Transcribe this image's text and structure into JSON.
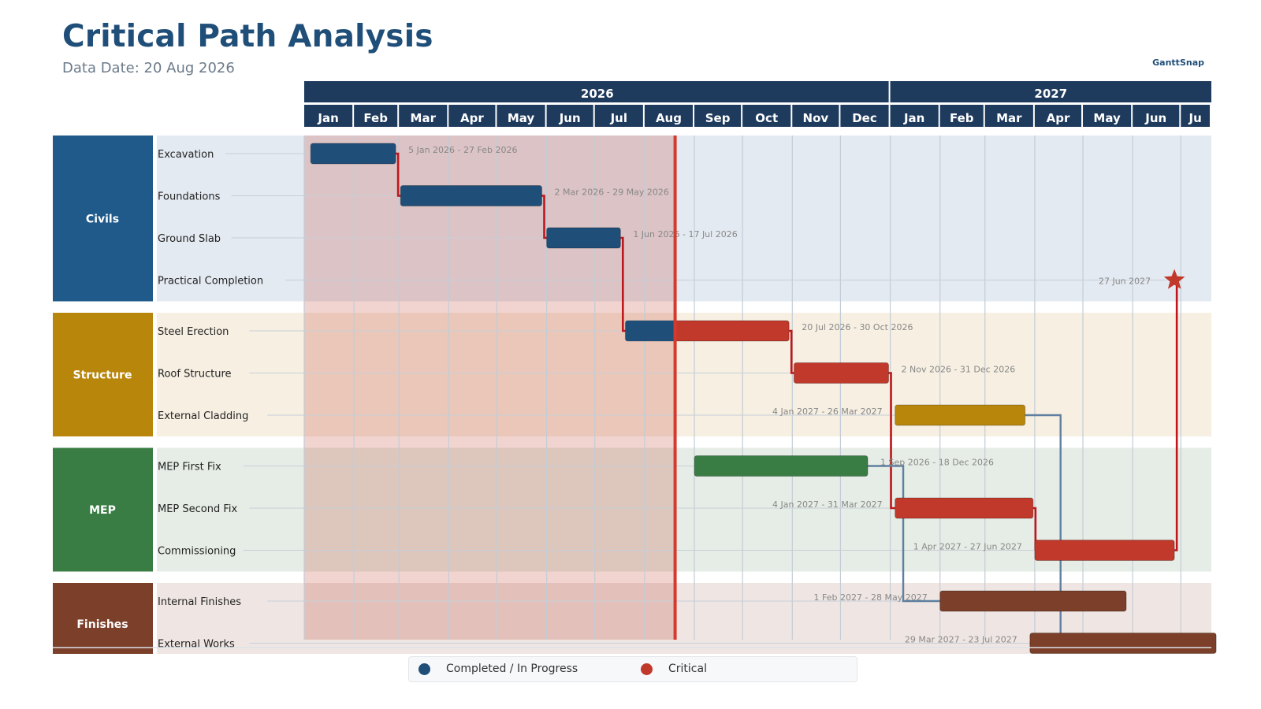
{
  "title": "Critical Path Analysis",
  "subtitle": "Data Date: 20 Aug 2026",
  "brand": "GanttSnap",
  "chart_data": {
    "type": "gantt",
    "data_date": "2026-08-20",
    "axis_start": "2026-01-01",
    "axis_end": "2027-07-20",
    "years": [
      {
        "label": "2026",
        "start": "2026-01-01",
        "end": "2027-01-01"
      },
      {
        "label": "2027",
        "start": "2027-01-01",
        "end": "2027-07-20"
      }
    ],
    "months": [
      {
        "label": "Jan",
        "start": "2026-01-01"
      },
      {
        "label": "Feb",
        "start": "2026-02-01"
      },
      {
        "label": "Mar",
        "start": "2026-03-01"
      },
      {
        "label": "Apr",
        "start": "2026-04-01"
      },
      {
        "label": "May",
        "start": "2026-05-01"
      },
      {
        "label": "Jun",
        "start": "2026-06-01"
      },
      {
        "label": "Jul",
        "start": "2026-07-01"
      },
      {
        "label": "Aug",
        "start": "2026-08-01"
      },
      {
        "label": "Sep",
        "start": "2026-09-01"
      },
      {
        "label": "Oct",
        "start": "2026-10-01"
      },
      {
        "label": "Nov",
        "start": "2026-11-01"
      },
      {
        "label": "Dec",
        "start": "2026-12-01"
      },
      {
        "label": "Jan",
        "start": "2027-01-01"
      },
      {
        "label": "Feb",
        "start": "2027-02-01"
      },
      {
        "label": "Mar",
        "start": "2027-03-01"
      },
      {
        "label": "Apr",
        "start": "2027-04-01"
      },
      {
        "label": "May",
        "start": "2027-05-01"
      },
      {
        "label": "Jun",
        "start": "2027-06-01"
      },
      {
        "label": "Ju",
        "start": "2027-07-01"
      }
    ],
    "groups": [
      {
        "name": "Civils",
        "color": "#1f5a8a",
        "band": "#e4eaf1",
        "tasks": [
          {
            "name": "Excavation",
            "start": "2026-01-05",
            "end": "2026-02-27",
            "label": "5 Jan 2026 - 27 Feb 2026",
            "color": "#1f4e79",
            "progress": 1
          },
          {
            "name": "Foundations",
            "start": "2026-03-02",
            "end": "2026-05-29",
            "label": "2 Mar 2026 - 29 May 2026",
            "color": "#1f4e79",
            "progress": 1
          },
          {
            "name": "Ground Slab",
            "start": "2026-06-01",
            "end": "2026-07-17",
            "label": "1 Jun 2026 - 17 Jul 2026",
            "color": "#1f4e79",
            "progress": 1
          },
          {
            "name": "Practical Completion",
            "milestone": true,
            "start": "2027-06-27",
            "end": "2027-06-27",
            "label": "27 Jun 2027",
            "color": "#c0392b"
          }
        ]
      },
      {
        "name": "Structure",
        "color": "#b8860b",
        "band": "#f6efe2",
        "tasks": [
          {
            "name": "Steel Erection",
            "start": "2026-07-20",
            "end": "2026-10-30",
            "label": "20 Jul 2026 - 30 Oct 2026",
            "color": "#c0392b",
            "progress": 0.3
          },
          {
            "name": "Roof Structure",
            "start": "2026-11-02",
            "end": "2026-12-31",
            "label": "2 Nov 2026 - 31 Dec 2026",
            "color": "#c0392b",
            "progress": 0
          },
          {
            "name": "External Cladding",
            "start": "2027-01-04",
            "end": "2027-03-26",
            "label": "4 Jan 2027 - 26 Mar 2027",
            "color": "#b8860b",
            "progress": 0
          }
        ]
      },
      {
        "name": "MEP",
        "color": "#3a7d44",
        "band": "#e6ede6",
        "tasks": [
          {
            "name": "MEP First Fix",
            "start": "2026-09-01",
            "end": "2026-12-18",
            "label": "1 Sep 2026 - 18 Dec 2026",
            "color": "#3a7d44",
            "progress": 0
          },
          {
            "name": "MEP Second Fix",
            "start": "2027-01-04",
            "end": "2027-03-31",
            "label": "4 Jan 2027 - 31 Mar 2027",
            "color": "#c0392b",
            "progress": 0
          },
          {
            "name": "Commissioning",
            "start": "2027-04-01",
            "end": "2027-06-27",
            "label": "1 Apr 2027 - 27 Jun 2027",
            "color": "#c0392b",
            "progress": 0
          }
        ]
      },
      {
        "name": "Finishes",
        "color": "#7b3f2a",
        "band": "#efe6e3",
        "tasks": [
          {
            "name": "Internal Finishes",
            "start": "2027-02-01",
            "end": "2027-05-28",
            "label": "1 Feb 2027 - 28 May 2027",
            "color": "#7b3f2a",
            "progress": 0
          },
          {
            "name": "External Works",
            "start": "2027-03-29",
            "end": "2027-07-23",
            "label": "29 Mar 2027 - 23 Jul 2027",
            "color": "#7b3f2a",
            "progress": 0
          }
        ]
      }
    ],
    "dependencies": [
      {
        "from": "Excavation",
        "to": "Foundations",
        "critical": true
      },
      {
        "from": "Foundations",
        "to": "Ground Slab",
        "critical": true
      },
      {
        "from": "Ground Slab",
        "to": "Steel Erection",
        "critical": true
      },
      {
        "from": "Steel Erection",
        "to": "Roof Structure",
        "critical": true
      },
      {
        "from": "Roof Structure",
        "to": "MEP Second Fix",
        "critical": true
      },
      {
        "from": "MEP Second Fix",
        "to": "Commissioning",
        "critical": true
      },
      {
        "from": "Commissioning",
        "to": "Practical Completion",
        "critical": true
      },
      {
        "from": "MEP First Fix",
        "to": "Internal Finishes",
        "critical": false
      },
      {
        "from": "External Cladding",
        "to": "External Works",
        "critical": false
      }
    ],
    "legend": [
      {
        "label": "Completed / In Progress",
        "color": "#1f4e79"
      },
      {
        "label": "Critical",
        "color": "#c0392b"
      }
    ]
  }
}
